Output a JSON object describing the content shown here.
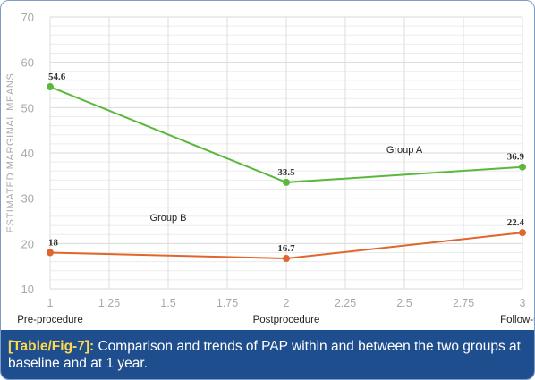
{
  "caption": {
    "tag": "[Table/Fig-7]:",
    "text": " Comparison and trends of PAP within and between the two groups at baseline and at 1 year."
  },
  "chart_data": {
    "type": "line",
    "xlabel": "",
    "ylabel": "ESTIMATED MARGINAL MEANS",
    "xlim": [
      1,
      3
    ],
    "ylim": [
      10,
      70
    ],
    "x_ticks": [
      "1",
      "1.25",
      "1.5",
      "1.75",
      "2",
      "2.25",
      "2.5",
      "2.75",
      "3"
    ],
    "y_ticks": [
      "10",
      "20",
      "30",
      "40",
      "50",
      "60",
      "70"
    ],
    "categories": [
      {
        "x": 1,
        "label": "Pre-procedure"
      },
      {
        "x": 2,
        "label": "Postprocedure"
      },
      {
        "x": 3,
        "label": "Follow-up"
      }
    ],
    "grid": true,
    "series": [
      {
        "name": "Group A",
        "color": "#5cb83c",
        "points": [
          {
            "x": 1,
            "y": 54.6,
            "label": "54.6"
          },
          {
            "x": 2,
            "y": 33.5,
            "label": "33.5"
          },
          {
            "x": 3,
            "y": 36.9,
            "label": "36.9"
          }
        ],
        "label_at": {
          "x": 2.5,
          "y": 40
        }
      },
      {
        "name": "Group B",
        "color": "#e0662c",
        "points": [
          {
            "x": 1,
            "y": 18,
            "label": "18"
          },
          {
            "x": 2,
            "y": 16.7,
            "label": "16.7"
          },
          {
            "x": 3,
            "y": 22.4,
            "label": "22.4"
          }
        ],
        "label_at": {
          "x": 1.5,
          "y": 25
        }
      }
    ]
  }
}
